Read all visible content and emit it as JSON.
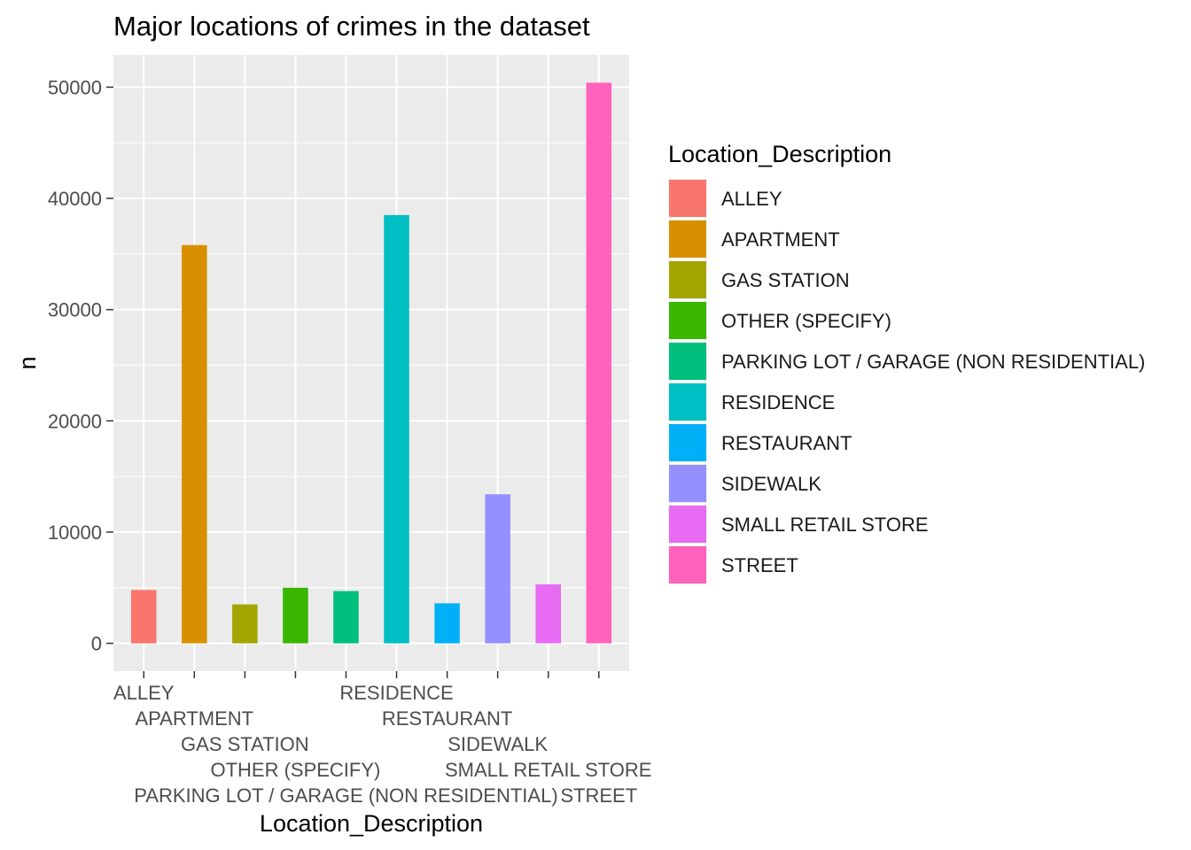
{
  "chart_data": {
    "type": "bar",
    "title": "Major locations of crimes in the dataset",
    "xlabel": "Location_Description",
    "ylabel": "n",
    "categories": [
      "ALLEY",
      "APARTMENT",
      "GAS STATION",
      "OTHER (SPECIFY)",
      "PARKING LOT / GARAGE (NON RESIDENTIAL)",
      "RESIDENCE",
      "RESTAURANT",
      "SIDEWALK",
      "SMALL RETAIL STORE",
      "STREET"
    ],
    "values": [
      4800,
      35800,
      3500,
      5000,
      4700,
      38500,
      3600,
      13400,
      5300,
      50400
    ],
    "colors": [
      "#F8766D",
      "#D89000",
      "#A3A500",
      "#39B600",
      "#00BF7D",
      "#00BFC4",
      "#00B0F6",
      "#9590FF",
      "#E76BF3",
      "#FF62BC"
    ],
    "ylim": [
      -2500,
      52900
    ],
    "yticks": [
      0,
      10000,
      20000,
      30000,
      40000,
      50000
    ],
    "ytick_labels": [
      "0",
      "10000",
      "20000",
      "30000",
      "40000",
      "50000"
    ],
    "grid": true,
    "panel_background": "#EBEBEB",
    "legend": {
      "title": "Location_Description",
      "position": "right"
    }
  }
}
